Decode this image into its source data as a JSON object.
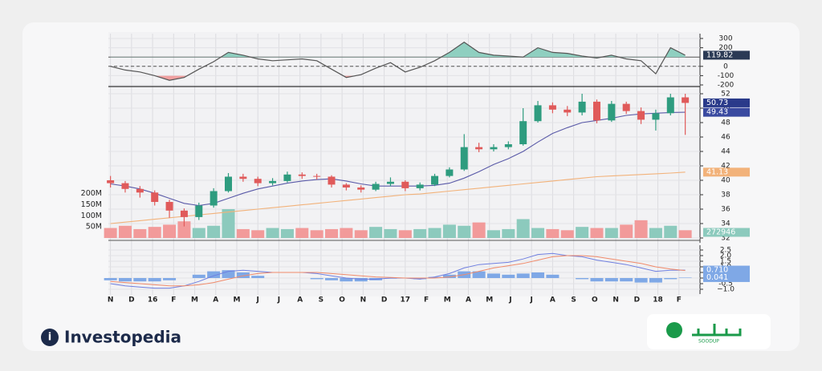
{
  "chart_data": [
    {
      "type": "line",
      "ylim": [
        -200,
        300
      ],
      "yticks": [
        300,
        200,
        0,
        -100,
        -200
      ],
      "levels": [
        {
          "value": 100,
          "style": "solid"
        },
        {
          "value": 0,
          "style": "dashed"
        }
      ],
      "fill_above": {
        "level": 100,
        "color": "#8fcfc0"
      },
      "fill_below": {
        "level": -100,
        "color": "#f0a0a0"
      },
      "series": [
        {
          "color": "#555555",
          "values": [
            0,
            -40,
            -60,
            -100,
            -150,
            -120,
            -30,
            50,
            150,
            120,
            80,
            60,
            70,
            80,
            60,
            -30,
            -120,
            -90,
            -20,
            40,
            -60,
            -10,
            60,
            150,
            260,
            150,
            120,
            110,
            100,
            200,
            150,
            140,
            110,
            90,
            120,
            80,
            60,
            -80,
            200,
            119.82
          ]
        }
      ],
      "markers": [
        {
          "value": 119.82,
          "color": "#2b3a55"
        }
      ]
    },
    {
      "type": "candlestick",
      "x": [
        0,
        0.7,
        1.4,
        2.1,
        2.8,
        3.5,
        4.2,
        4.9,
        5.6,
        6.3,
        7.0,
        7.7,
        8.4,
        9.1,
        9.8,
        10.5,
        11.2,
        11.9,
        12.6,
        13.3,
        14.0,
        14.7,
        15.4,
        16.1,
        16.8,
        17.5,
        18.2,
        18.9,
        19.6,
        20.3,
        21.0,
        21.7,
        22.4,
        23.1,
        23.8,
        24.5,
        25.2,
        25.9,
        26.6,
        27.3
      ],
      "open": [
        40.0,
        39.6,
        38.8,
        38.3,
        37.0,
        35.8,
        34.9,
        36.5,
        38.5,
        40.5,
        40.2,
        39.6,
        39.9,
        40.8,
        40.6,
        40.5,
        39.4,
        39.0,
        38.7,
        39.5,
        39.8,
        38.9,
        39.4,
        40.6,
        41.5,
        44.6,
        44.3,
        44.6,
        45.0,
        48.2,
        50.4,
        49.8,
        49.4,
        50.9,
        48.3,
        50.6,
        49.6,
        48.4,
        49.3,
        51.5
      ],
      "high": [
        40.6,
        39.9,
        39.2,
        38.6,
        37.3,
        36.1,
        36.9,
        38.9,
        41.0,
        40.9,
        40.5,
        40.3,
        41.2,
        41.1,
        40.9,
        40.7,
        39.6,
        39.3,
        39.8,
        40.4,
        40.0,
        39.7,
        40.9,
        41.8,
        46.4,
        45.2,
        45.0,
        45.4,
        50.0,
        51.0,
        50.8,
        50.3,
        52.0,
        51.2,
        51.0,
        50.9,
        50.1,
        49.8,
        52.0,
        52.0
      ],
      "low": [
        39.0,
        38.3,
        37.6,
        36.5,
        34.8,
        33.6,
        34.5,
        36.2,
        38.3,
        39.8,
        39.2,
        39.3,
        39.7,
        40.2,
        40.1,
        39.0,
        38.6,
        38.3,
        38.5,
        39.2,
        38.5,
        38.6,
        39.2,
        40.4,
        41.3,
        43.9,
        44.0,
        44.3,
        44.8,
        48.0,
        49.3,
        48.9,
        49.0,
        47.9,
        48.1,
        49.2,
        47.8,
        46.9,
        49.0,
        46.3
      ],
      "close": [
        39.6,
        38.8,
        38.3,
        37.0,
        35.8,
        34.9,
        36.5,
        38.5,
        40.5,
        40.2,
        39.6,
        39.9,
        40.8,
        40.6,
        40.5,
        39.4,
        39.0,
        38.7,
        39.5,
        39.8,
        38.9,
        39.4,
        40.6,
        41.5,
        44.6,
        44.3,
        44.6,
        45.0,
        48.2,
        50.4,
        49.8,
        49.4,
        50.9,
        48.3,
        50.6,
        49.6,
        48.4,
        49.3,
        51.5,
        50.73
      ],
      "up_color": "#2e9c7f",
      "down_color": "#e05a5a",
      "ylim": [
        32,
        52
      ],
      "yticks": [
        32,
        34,
        36,
        38,
        40,
        42,
        44,
        46,
        48,
        50,
        52
      ],
      "y2lim": [
        0,
        650
      ],
      "y2ticks": [
        {
          "value": 50,
          "label": "50M"
        },
        {
          "value": 100,
          "label": "100M"
        },
        {
          "value": 150,
          "label": "150M"
        },
        {
          "value": 200,
          "label": "200M"
        }
      ],
      "volume": {
        "axis": "y2",
        "up_color": "#8ccabd",
        "down_color": "#f29a9a",
        "values": [
          45,
          55,
          40,
          50,
          60,
          75,
          45,
          55,
          130,
          40,
          35,
          45,
          40,
          45,
          35,
          40,
          45,
          35,
          50,
          40,
          35,
          40,
          45,
          60,
          55,
          70,
          35,
          40,
          85,
          45,
          40,
          35,
          50,
          45,
          45,
          60,
          80,
          45,
          55,
          35
        ],
        "last_label": "272946",
        "label_color": "#8ccabd"
      },
      "ma_short": {
        "color": "#5a5aa8",
        "values": [
          39.5,
          39.2,
          38.8,
          38.2,
          37.5,
          36.8,
          36.5,
          36.8,
          37.5,
          38.2,
          38.8,
          39.2,
          39.6,
          39.9,
          40.1,
          40.2,
          39.9,
          39.5,
          39.2,
          39.2,
          39.2,
          39.2,
          39.3,
          39.6,
          40.3,
          41.2,
          42.2,
          43.0,
          44.0,
          45.3,
          46.5,
          47.3,
          48.0,
          48.3,
          48.6,
          49.0,
          49.2,
          49.3,
          49.4,
          49.43
        ]
      },
      "ma_long": {
        "color": "#f2b27a",
        "values": [
          34.0,
          34.2,
          34.4,
          34.6,
          34.8,
          35.0,
          35.2,
          35.4,
          35.6,
          35.8,
          36.0,
          36.2,
          36.4,
          36.6,
          36.8,
          37.0,
          37.2,
          37.4,
          37.6,
          37.8,
          38.0,
          38.1,
          38.3,
          38.5,
          38.7,
          38.9,
          39.1,
          39.3,
          39.5,
          39.7,
          39.9,
          40.1,
          40.3,
          40.5,
          40.6,
          40.7,
          40.8,
          40.9,
          41.0,
          41.13
        ]
      },
      "markers": [
        {
          "value": 50.73,
          "color": "#2a3a8a"
        },
        {
          "value": 49.43,
          "color": "#3a4aa0"
        },
        {
          "value": 41.13,
          "color": "#f2b27a"
        }
      ]
    },
    {
      "type": "combo",
      "ylim": [
        -1.0,
        2.5
      ],
      "yticks": [
        2.5,
        {
          "value": 2,
          "label": "2.0"
        },
        1.5,
        {
          "value": 1,
          "label": "1.0"
        },
        0.5,
        0,
        -0.5,
        {
          "value": -1,
          "label": "−1.0"
        }
      ],
      "xlim": [
        -0.1,
        28
      ],
      "xticks": [
        {
          "value": 0,
          "label": "N"
        },
        {
          "value": 1,
          "label": "D"
        },
        {
          "value": 2,
          "label": "16"
        },
        {
          "value": 3,
          "label": "F"
        },
        {
          "value": 4,
          "label": "M"
        },
        {
          "value": 5,
          "label": "A"
        },
        {
          "value": 6,
          "label": "M"
        },
        {
          "value": 7,
          "label": "J"
        },
        {
          "value": 8,
          "label": "J"
        },
        {
          "value": 9,
          "label": "A"
        },
        {
          "value": 10,
          "label": "S"
        },
        {
          "value": 11,
          "label": "O"
        },
        {
          "value": 12,
          "label": "N"
        },
        {
          "value": 13,
          "label": "D"
        },
        {
          "value": 14,
          "label": "17"
        },
        {
          "value": 15,
          "label": "F"
        },
        {
          "value": 16,
          "label": "M"
        },
        {
          "value": 17,
          "label": "A"
        },
        {
          "value": 18,
          "label": "M"
        },
        {
          "value": 19,
          "label": "J"
        },
        {
          "value": 20,
          "label": "J"
        },
        {
          "value": 21,
          "label": "A"
        },
        {
          "value": 22,
          "label": "S"
        },
        {
          "value": 23,
          "label": "O"
        },
        {
          "value": 24,
          "label": "N"
        },
        {
          "value": 25,
          "label": "D"
        },
        {
          "value": 26,
          "label": "18"
        },
        {
          "value": 27,
          "label": "F"
        }
      ],
      "series": [
        {
          "type": "bar",
          "color": "#7fa8e6",
          "values": [
            -0.2,
            -0.3,
            -0.3,
            -0.3,
            -0.2,
            0,
            0.3,
            0.6,
            0.7,
            0.5,
            0.2,
            0,
            0,
            0,
            -0.1,
            -0.2,
            -0.3,
            -0.3,
            -0.2,
            -0.05,
            0,
            -0.1,
            0.1,
            0.3,
            0.6,
            0.6,
            0.4,
            0.3,
            0.4,
            0.5,
            0.3,
            0,
            -0.1,
            -0.3,
            -0.3,
            -0.3,
            -0.4,
            -0.4,
            -0.1,
            0.041
          ]
        },
        {
          "type": "line",
          "color": "#6f7fe0",
          "values": [
            -0.5,
            -0.7,
            -0.8,
            -0.9,
            -0.9,
            -0.7,
            -0.3,
            0.2,
            0.6,
            0.7,
            0.6,
            0.5,
            0.5,
            0.5,
            0.4,
            0.2,
            0,
            -0.1,
            -0.1,
            0,
            0,
            -0.1,
            0.1,
            0.4,
            0.9,
            1.2,
            1.3,
            1.4,
            1.7,
            2.1,
            2.2,
            2.0,
            1.9,
            1.6,
            1.4,
            1.2,
            0.9,
            0.6,
            0.7,
            0.71
          ]
        },
        {
          "type": "line",
          "color": "#f08a6a",
          "values": [
            -0.3,
            -0.4,
            -0.5,
            -0.6,
            -0.7,
            -0.7,
            -0.6,
            -0.4,
            -0.1,
            0.2,
            0.4,
            0.5,
            0.5,
            0.5,
            0.5,
            0.4,
            0.3,
            0.2,
            0.1,
            0.05,
            0,
            0,
            0,
            0.1,
            0.3,
            0.6,
            0.9,
            1.1,
            1.3,
            1.6,
            1.9,
            2.0,
            2.0,
            1.9,
            1.7,
            1.5,
            1.3,
            1.0,
            0.8,
            0.67
          ]
        }
      ],
      "markers": [
        {
          "value": 0.71,
          "label": "0.710",
          "color": "#7fa8e6"
        },
        {
          "value": 0.041,
          "label": "0.041",
          "color": "#7fa8e6"
        }
      ]
    }
  ],
  "branding": {
    "logo": "Investopedia",
    "watermark": "SOODUP"
  }
}
